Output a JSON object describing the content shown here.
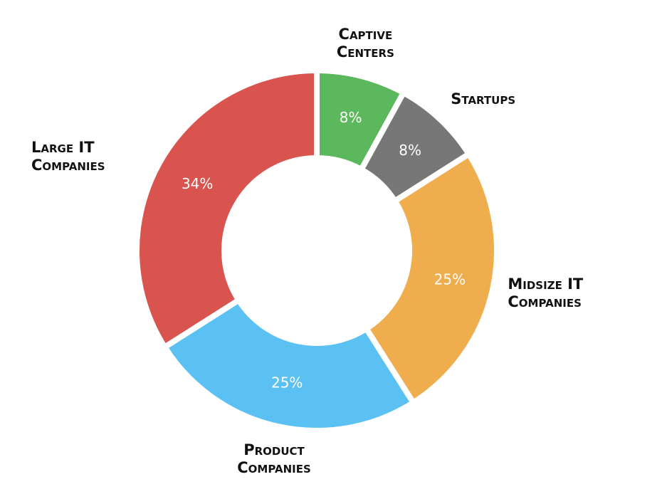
{
  "chart_data": {
    "type": "donut",
    "categories": [
      "Captive Centers",
      "Startups",
      "Midsize IT Companies",
      "Product Companies",
      "Large IT Companies"
    ],
    "values": [
      8,
      8,
      25,
      25,
      34
    ],
    "value_labels": [
      "8%",
      "8%",
      "25%",
      "25%",
      "34%"
    ],
    "colors": [
      "#5cb85c",
      "#777777",
      "#f0ad4e",
      "#5bc0f2",
      "#d9534f"
    ]
  }
}
